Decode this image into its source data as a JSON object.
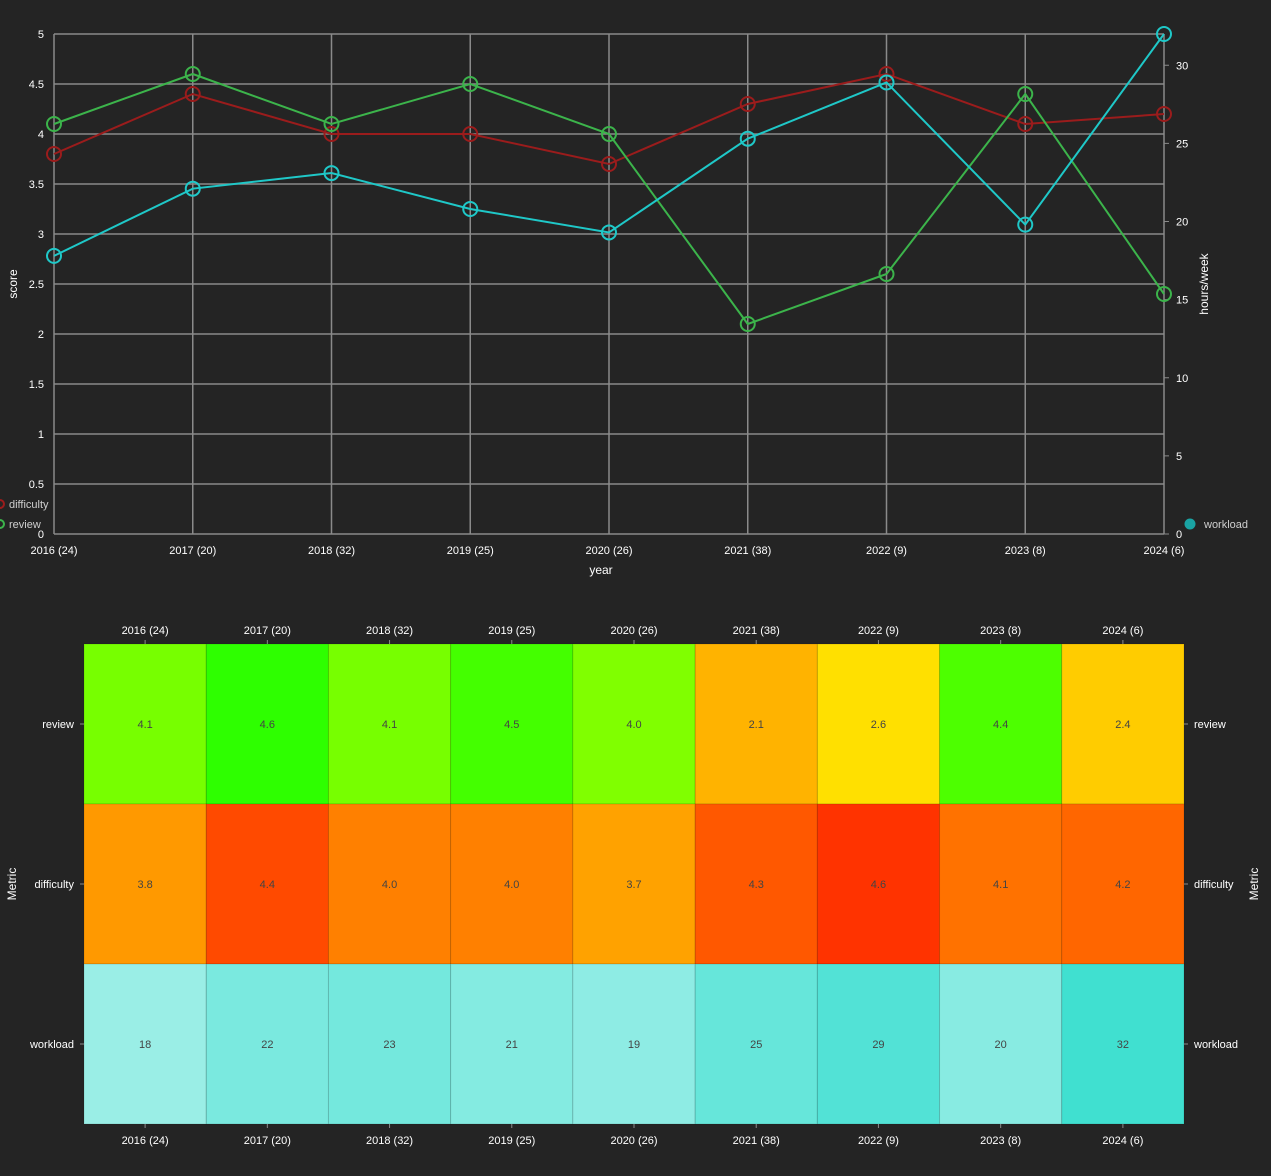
{
  "line_chart": {
    "xlabel": "year",
    "ylabel_left": "score",
    "ylabel_right": "hours/week",
    "legend_left": [
      "difficulty",
      "review"
    ],
    "legend_right": [
      "workload"
    ]
  },
  "heatmap": {
    "ylabel": "Metric",
    "rows": [
      "review",
      "difficulty",
      "workload"
    ]
  },
  "chart_data": [
    {
      "type": "line",
      "categories": [
        "2016 (24)",
        "2017 (20)",
        "2018 (32)",
        "2019 (25)",
        "2020 (26)",
        "2021 (38)",
        "2022 (9)",
        "2023 (8)",
        "2024 (6)"
      ],
      "xlabel": "year",
      "ylabel": "score",
      "y2label": "hours/week",
      "ylim": [
        0,
        5
      ],
      "y2lim": [
        0,
        32
      ],
      "yticks": [
        0,
        0.5,
        1,
        1.5,
        2,
        2.5,
        3,
        3.5,
        4,
        4.5,
        5
      ],
      "y2ticks": [
        0,
        5,
        10,
        15,
        20,
        25,
        30
      ],
      "grid": true,
      "series": [
        {
          "name": "difficulty",
          "axis": "left",
          "color": "#9b1c1c",
          "values": [
            3.8,
            4.4,
            4.0,
            4.0,
            3.7,
            4.3,
            4.6,
            4.1,
            4.2
          ]
        },
        {
          "name": "review",
          "axis": "left",
          "color": "#3cb44b",
          "values": [
            4.1,
            4.6,
            4.1,
            4.5,
            4.0,
            2.1,
            2.6,
            4.4,
            2.4
          ]
        },
        {
          "name": "workload",
          "axis": "right",
          "color": "#1fc8c8",
          "values": [
            17.8,
            22.1,
            23.1,
            20.8,
            19.3,
            25.3,
            28.9,
            19.8,
            32.0
          ]
        }
      ],
      "legend": "bottom-left / bottom-right"
    },
    {
      "type": "heatmap",
      "categories": [
        "2016 (24)",
        "2017 (20)",
        "2018 (32)",
        "2019 (25)",
        "2020 (26)",
        "2021 (38)",
        "2022 (9)",
        "2023 (8)",
        "2024 (6)"
      ],
      "rows": [
        "review",
        "difficulty",
        "workload"
      ],
      "ylabel": "Metric",
      "values": [
        [
          "4.1",
          "4.6",
          "4.1",
          "4.5",
          "4.0",
          "2.1",
          "2.6",
          "4.4",
          "2.4"
        ],
        [
          "3.8",
          "4.4",
          "4.0",
          "4.0",
          "3.7",
          "4.3",
          "4.6",
          "4.1",
          "4.2"
        ],
        [
          "18",
          "22",
          "23",
          "21",
          "19",
          "25",
          "29",
          "20",
          "32"
        ]
      ],
      "colors": [
        [
          "#77ff00",
          "#2eff00",
          "#77ff00",
          "#44ff00",
          "#80ff00",
          "#ffb300",
          "#ffe000",
          "#4dff00",
          "#ffcc00"
        ],
        [
          "#ff9900",
          "#ff4a00",
          "#ff8000",
          "#ff8000",
          "#ffa200",
          "#ff5800",
          "#ff3300",
          "#ff7200",
          "#ff6600"
        ],
        [
          "#9aeee6",
          "#7ae9df",
          "#74e8dd",
          "#84ebe1",
          "#8eece4",
          "#66e6da",
          "#52e2d6",
          "#88ebe2",
          "#40e0d0"
        ]
      ]
    }
  ]
}
